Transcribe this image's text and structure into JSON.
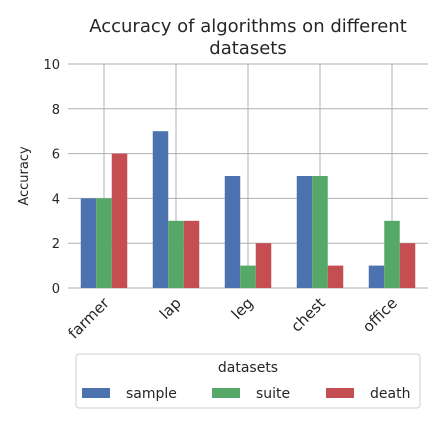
{
  "chart_data": {
    "type": "bar",
    "title_lines": [
      "Accuracy of algorithms on different",
      "datasets"
    ],
    "xlabel": "",
    "ylabel": "Accuracy",
    "ylim": [
      0,
      10
    ],
    "yticks": [
      0,
      2,
      4,
      6,
      8,
      10
    ],
    "grid": true,
    "categories": [
      "farmer",
      "lap",
      "leg",
      "chest",
      "office"
    ],
    "series": [
      {
        "name": "sample",
        "color": "#4c72b0",
        "values": [
          4,
          7,
          5,
          5,
          1
        ]
      },
      {
        "name": "suite",
        "color": "#55a868",
        "values": [
          4,
          3,
          1,
          5,
          3
        ]
      },
      {
        "name": "death",
        "color": "#c44e52",
        "values": [
          6,
          3,
          2,
          1,
          2
        ]
      }
    ],
    "legend": {
      "title": "datasets",
      "placement": "bottom"
    }
  }
}
